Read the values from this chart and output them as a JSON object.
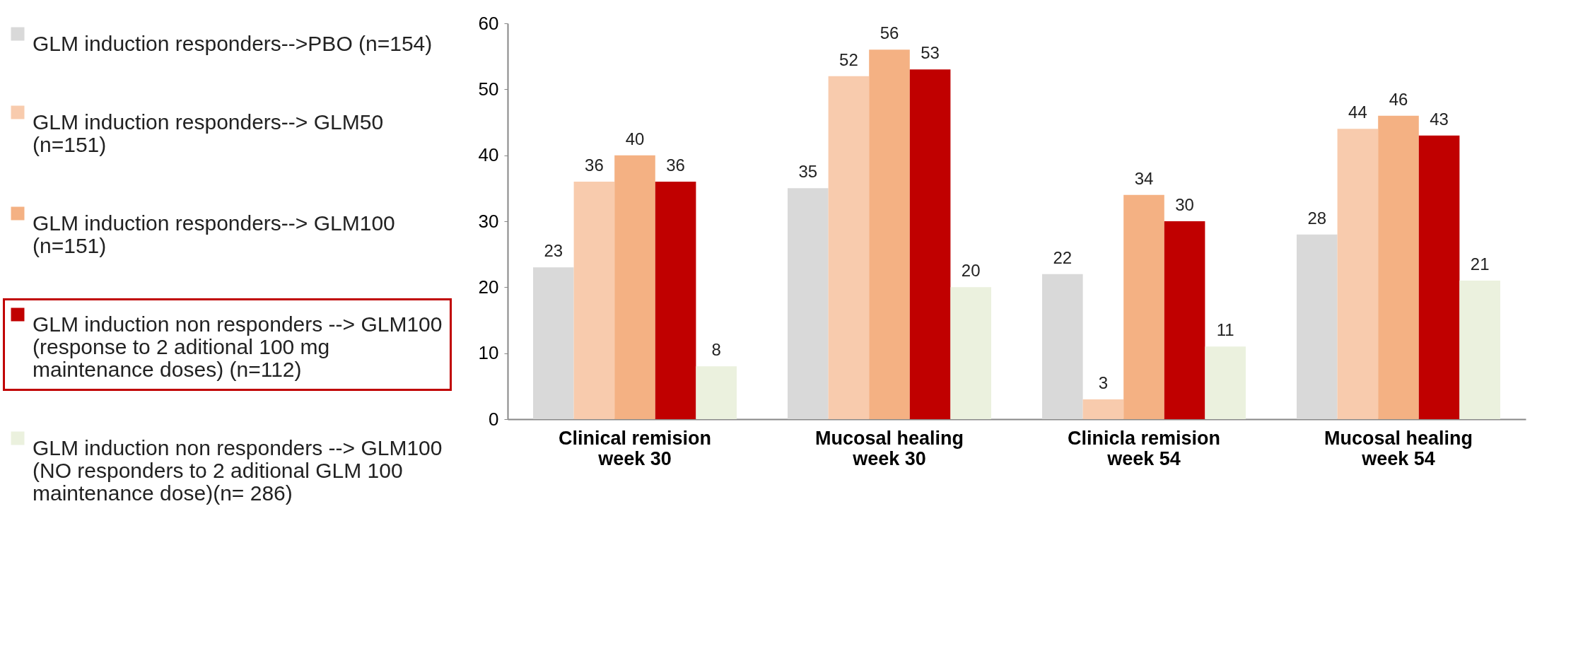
{
  "chart_data": {
    "type": "bar",
    "categories": [
      "Clinical remision week 30",
      "Mucosal healing week 30",
      "Clinicla remision week 54",
      "Mucosal healing week 54"
    ],
    "series": [
      {
        "name": "GLM induction responders-->PBO  (n=154)",
        "color": "#d9d9d9",
        "values": [
          23,
          35,
          22,
          28
        ]
      },
      {
        "name": "GLM induction responders--> GLM50 (n=151)",
        "color": "#f8cbad",
        "values": [
          36,
          52,
          3,
          44
        ]
      },
      {
        "name": "GLM induction responders--> GLM100 (n=151)",
        "color": "#f4b183",
        "values": [
          40,
          56,
          34,
          46
        ]
      },
      {
        "name": "GLM induction non responders --> GLM100 (response to 2 aditional 100 mg maintenance doses) (n=112)",
        "color": "#c00000",
        "values": [
          36,
          53,
          30,
          43
        ]
      },
      {
        "name": "GLM induction non responders --> GLM100 (NO responders to 2 aditional GLM 100 maintenance dose)(n= 286)",
        "color": "#ebf1de",
        "values": [
          8,
          20,
          11,
          21
        ]
      }
    ],
    "ylim": [
      0,
      60
    ],
    "yticks": [
      0,
      10,
      20,
      30,
      40,
      50,
      60
    ],
    "grid": false,
    "legend": "left",
    "data_labels": true
  }
}
